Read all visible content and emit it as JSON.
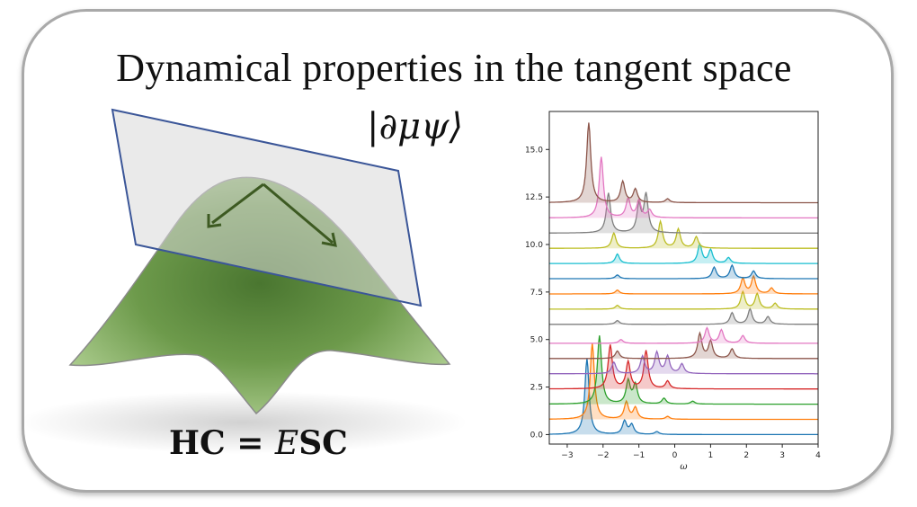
{
  "title": "Dynamical properties in the tangent space",
  "ket_label": "|∂μψ⟩",
  "equation": {
    "prefix": "HC = ",
    "E": "E",
    "suffix": "SC"
  },
  "chart_data": {
    "type": "line",
    "title": "",
    "xlabel": "ω",
    "ylabel": "",
    "xlim": [
      -3.5,
      4
    ],
    "ylim": [
      -0.5,
      17
    ],
    "xticks": [
      -3,
      -2,
      -1,
      0,
      1,
      2,
      3,
      4
    ],
    "yticks": [
      0.0,
      2.5,
      5.0,
      7.5,
      10.0,
      12.5,
      15.0
    ],
    "ytick_labels": [
      "0.0",
      "2.5",
      "5.0",
      "7.5",
      "10.0",
      "12.5",
      "15.0"
    ],
    "grid": false,
    "series": [
      {
        "color": "#1f77b4",
        "offset": 0.0,
        "peaks": [
          [
            -2.45,
            4.0
          ],
          [
            -1.4,
            0.7
          ],
          [
            -1.2,
            0.5
          ],
          [
            -0.5,
            0.15
          ]
        ]
      },
      {
        "color": "#ff7f0e",
        "offset": 0.8,
        "peaks": [
          [
            -2.3,
            4.0
          ],
          [
            -1.35,
            0.9
          ],
          [
            -1.1,
            0.6
          ],
          [
            -0.2,
            0.15
          ]
        ]
      },
      {
        "color": "#2ca02c",
        "offset": 1.6,
        "peaks": [
          [
            -2.1,
            3.6
          ],
          [
            -1.3,
            1.2
          ],
          [
            -1.1,
            1.0
          ],
          [
            -0.3,
            0.3
          ],
          [
            0.5,
            0.15
          ]
        ]
      },
      {
        "color": "#d62728",
        "offset": 2.4,
        "peaks": [
          [
            -1.8,
            2.3
          ],
          [
            -1.3,
            1.4
          ],
          [
            -0.8,
            2.0
          ],
          [
            -0.2,
            0.4
          ]
        ]
      },
      {
        "color": "#9467bd",
        "offset": 3.2,
        "peaks": [
          [
            -1.7,
            0.6
          ],
          [
            -0.9,
            0.9
          ],
          [
            -0.5,
            1.1
          ],
          [
            -0.2,
            0.9
          ],
          [
            0.2,
            0.5
          ]
        ]
      },
      {
        "color": "#8c564b",
        "offset": 4.0,
        "peaks": [
          [
            -1.6,
            0.4
          ],
          [
            0.7,
            1.3
          ],
          [
            1.0,
            0.9
          ],
          [
            1.6,
            0.5
          ]
        ]
      },
      {
        "color": "#e377c2",
        "offset": 4.8,
        "peaks": [
          [
            -1.5,
            0.2
          ],
          [
            0.9,
            0.8
          ],
          [
            1.3,
            0.7
          ],
          [
            1.9,
            0.4
          ]
        ]
      },
      {
        "color": "#7f7f7f",
        "offset": 5.8,
        "peaks": [
          [
            -1.6,
            0.2
          ],
          [
            1.6,
            0.6
          ],
          [
            2.1,
            0.8
          ],
          [
            2.6,
            0.4
          ]
        ]
      },
      {
        "color": "#bcbd22",
        "offset": 6.6,
        "peaks": [
          [
            -1.6,
            0.2
          ],
          [
            1.9,
            0.9
          ],
          [
            2.3,
            0.8
          ],
          [
            2.8,
            0.3
          ]
        ]
      },
      {
        "color": "#ff7f0e",
        "offset": 7.4,
        "peaks": [
          [
            -1.6,
            0.2
          ],
          [
            1.9,
            0.8
          ],
          [
            2.2,
            0.9
          ],
          [
            2.7,
            0.3
          ]
        ]
      },
      {
        "color": "#1f77b4",
        "offset": 8.2,
        "peaks": [
          [
            -1.6,
            0.2
          ],
          [
            1.1,
            0.6
          ],
          [
            1.6,
            0.7
          ],
          [
            2.2,
            0.4
          ]
        ]
      },
      {
        "color": "#17becf",
        "offset": 9.0,
        "peaks": [
          [
            -1.6,
            0.5
          ],
          [
            0.7,
            1.0
          ],
          [
            1.0,
            0.7
          ],
          [
            1.5,
            0.3
          ]
        ]
      },
      {
        "color": "#bcbd22",
        "offset": 9.8,
        "peaks": [
          [
            -1.7,
            0.8
          ],
          [
            -0.4,
            1.4
          ],
          [
            0.1,
            1.0
          ],
          [
            0.6,
            0.6
          ]
        ]
      },
      {
        "color": "#7f7f7f",
        "offset": 10.6,
        "peaks": [
          [
            -1.85,
            2.1
          ],
          [
            -1.0,
            1.4
          ],
          [
            -0.8,
            2.0
          ]
        ]
      },
      {
        "color": "#e377c2",
        "offset": 11.4,
        "peaks": [
          [
            -2.05,
            3.2
          ],
          [
            -1.3,
            1.0
          ],
          [
            -1.0,
            0.9
          ],
          [
            -0.7,
            0.4
          ]
        ]
      },
      {
        "color": "#8c564b",
        "offset": 12.2,
        "peaks": [
          [
            -2.4,
            4.2
          ],
          [
            -1.45,
            1.1
          ],
          [
            -1.1,
            0.7
          ],
          [
            -0.2,
            0.2
          ]
        ]
      }
    ]
  }
}
